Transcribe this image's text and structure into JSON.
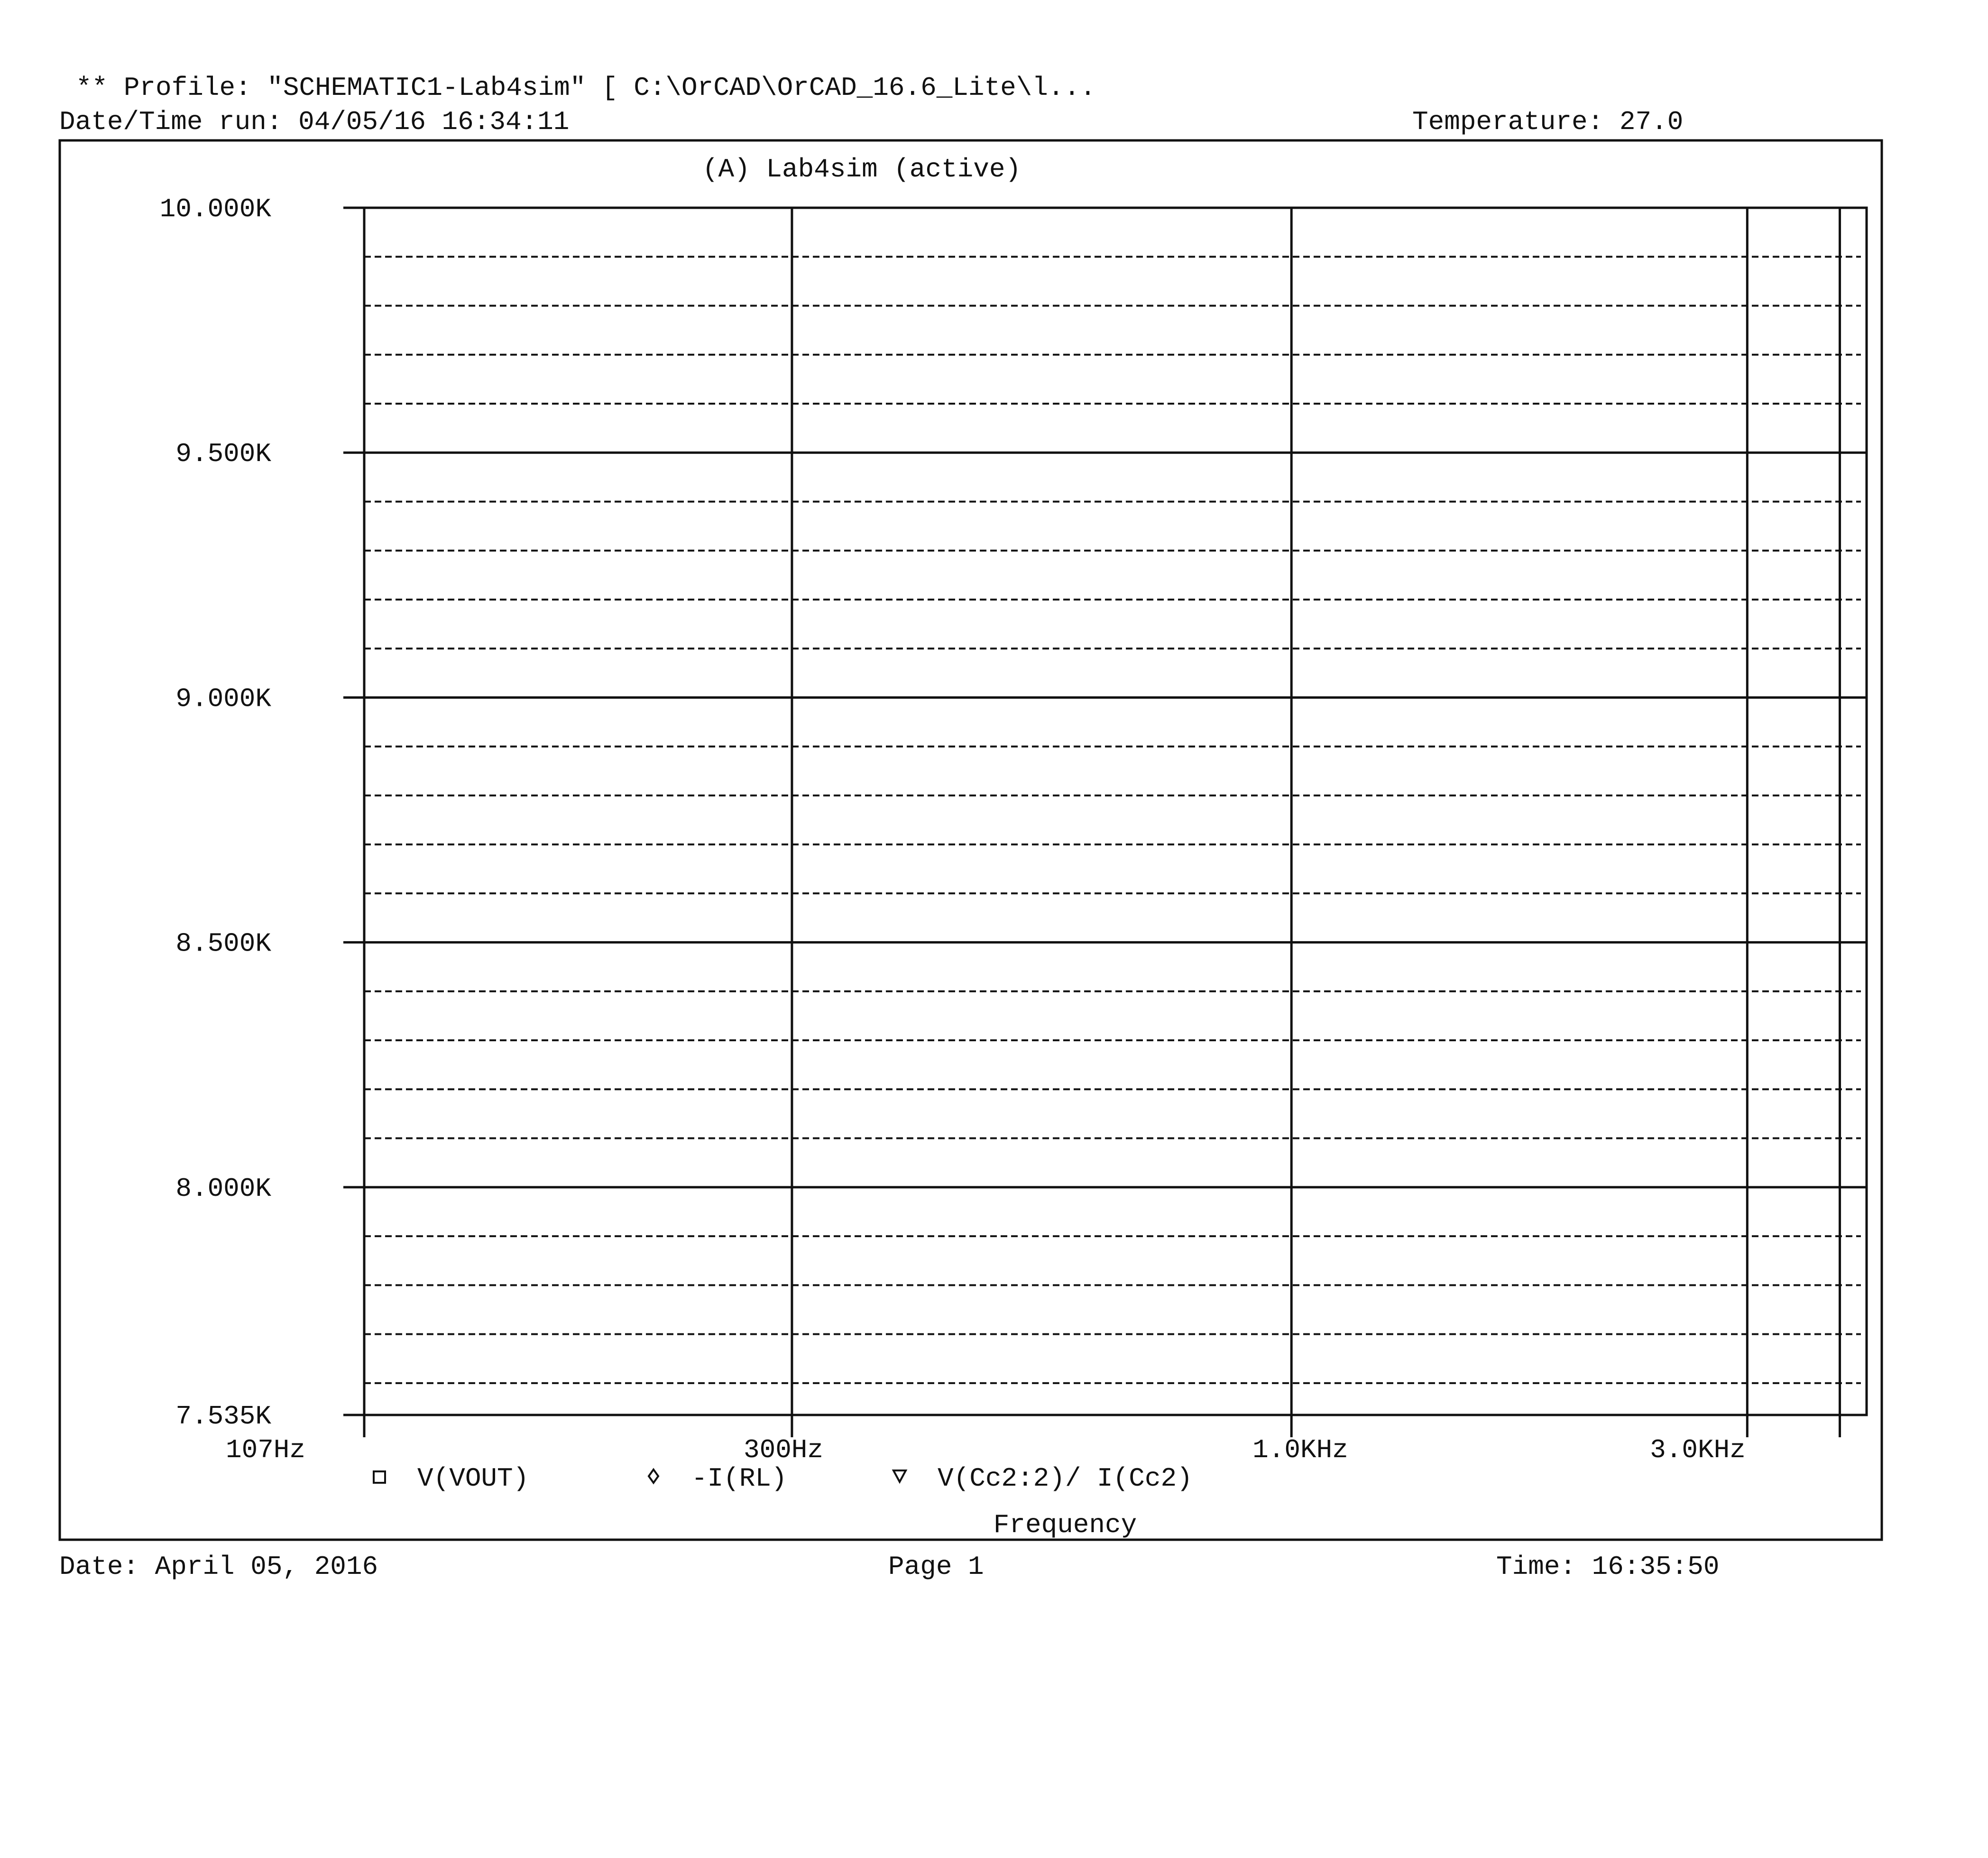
{
  "header": {
    "profile": "** Profile: \"SCHEMATIC1-Lab4sim\"  [ C:\\OrCAD\\OrCAD_16.6_Lite\\l...",
    "date_time_run": "Date/Time run: 04/05/16 16:34:11",
    "temperature": "Temperature: 27.0"
  },
  "footer": {
    "date": "Date: April 05, 2016",
    "page": "Page 1",
    "time": "Time: 16:35:50"
  },
  "colors": {
    "background": "#ffffff",
    "ink": "#111111"
  },
  "chart_data": {
    "type": "line",
    "title": "(A) Lab4sim (active)",
    "xlabel": "Frequency",
    "ylabel": "",
    "x_scale": "log",
    "xlim": [
      107,
      4000
    ],
    "ylim": [
      7535,
      10000
    ],
    "x_ticks": [
      {
        "value": 107,
        "label": "107Hz"
      },
      {
        "value": 300,
        "label": "300Hz"
      },
      {
        "value": 1000,
        "label": "1.0KHz"
      },
      {
        "value": 3000,
        "label": "3.0KHz"
      }
    ],
    "y_ticks": [
      {
        "value": 10000,
        "label": "10.000K"
      },
      {
        "value": 9500,
        "label": "9.500K"
      },
      {
        "value": 9000,
        "label": "9.000K"
      },
      {
        "value": 8500,
        "label": "8.500K"
      },
      {
        "value": 8000,
        "label": "8.000K"
      },
      {
        "value": 7535,
        "label": "7.535K"
      }
    ],
    "y_minor_step": 100,
    "grid": true,
    "legend_position": "bottom",
    "series": [
      {
        "name": "V(VOUT)",
        "marker": "square",
        "values": []
      },
      {
        "name": "-I(RL)",
        "marker": "diamond",
        "values": []
      },
      {
        "name": "V(Cc2:2)/ I(Cc2)",
        "marker": "triangle-down",
        "values": []
      }
    ]
  }
}
